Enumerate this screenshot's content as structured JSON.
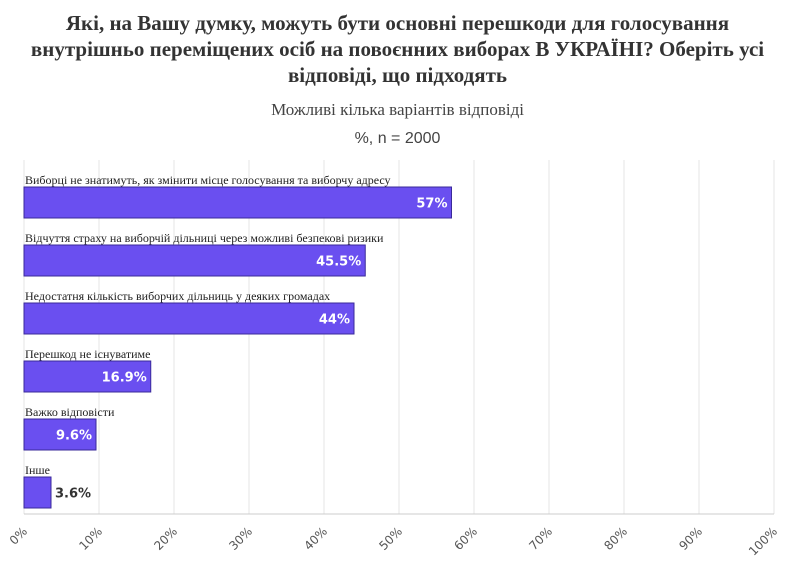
{
  "chart_data": {
    "type": "bar",
    "orientation": "horizontal",
    "title": "Які, на Вашу думку, можуть бути основні перешкоди для голосування внутрішньо переміщених осіб на повоєнних виборах В УКРАЇНІ? Оберіть усі відповіді, що підходять",
    "subtitle": "Можливі кілька варіантів відповіді",
    "note": "%, n = 2000",
    "categories": [
      "Виборці не знатимуть, як змінити місце голосування та виборчу адресу",
      "Відчуття страху на виборчій дільниці через можливі безпекові ризики",
      "Недостатня кількість виборчих дільниць у деяких громадах",
      "Перешкод не існуватиме",
      "Важко відповісти",
      "Інше"
    ],
    "values": [
      57,
      45.5,
      44,
      16.9,
      9.6,
      3.6
    ],
    "value_labels": [
      "57%",
      "45.5%",
      "44%",
      "16.9%",
      "9.6%",
      "3.6%"
    ],
    "xlim": [
      0,
      100
    ],
    "ticks": [
      0,
      10,
      20,
      30,
      40,
      50,
      60,
      70,
      80,
      90,
      100
    ],
    "tick_labels": [
      "0%",
      "10%",
      "20%",
      "30%",
      "40%",
      "50%",
      "60%",
      "70%",
      "80%",
      "90%",
      "100%"
    ],
    "grid": true,
    "legend": "none",
    "colors": {
      "bar": "#6a4ff0",
      "bar_border": "#3a2a9a",
      "grid": "#e6e6e6",
      "label_inside": "#ffffff",
      "label_outside": "#333333"
    }
  }
}
